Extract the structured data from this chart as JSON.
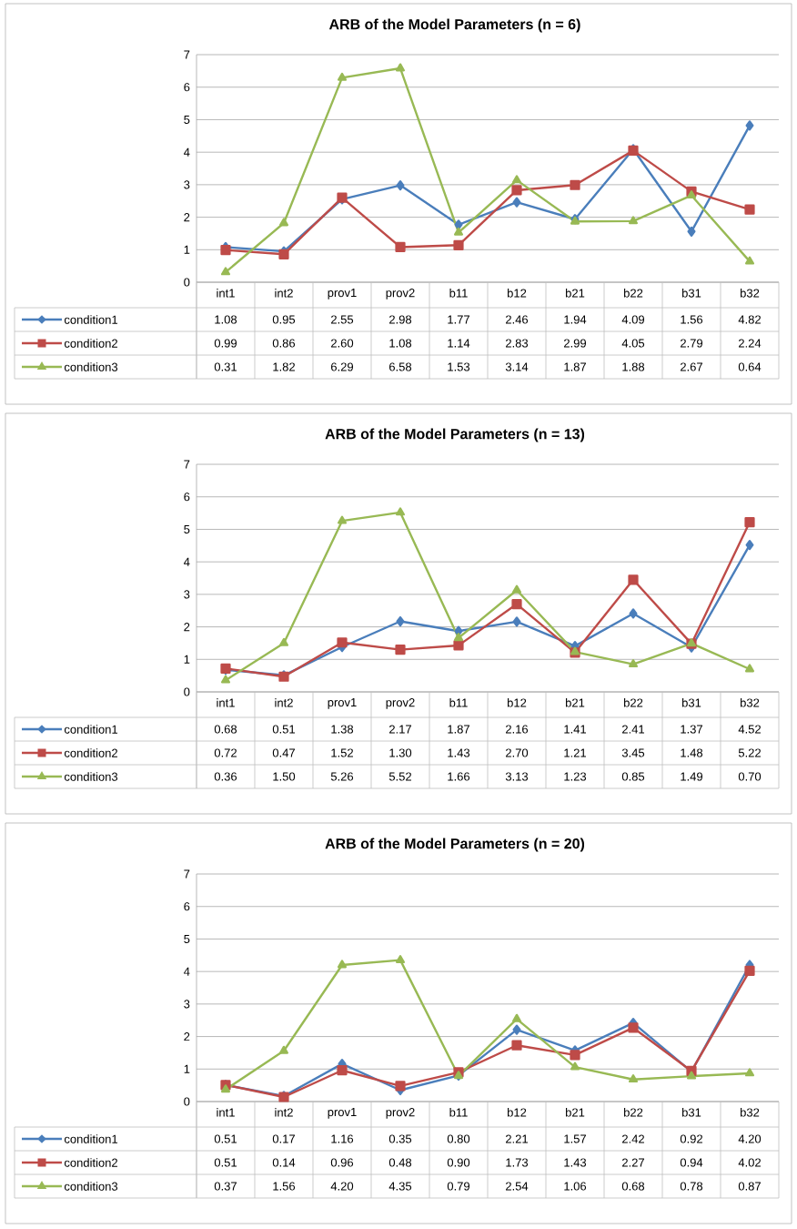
{
  "chart_data": [
    {
      "type": "line",
      "title": "ARB of the Model Parameters (n = 6)",
      "categories": [
        "int1",
        "int2",
        "prov1",
        "prov2",
        "b11",
        "b12",
        "b21",
        "b22",
        "b31",
        "b32"
      ],
      "ylim": [
        0,
        7
      ],
      "yticks": [
        0,
        1,
        2,
        3,
        4,
        5,
        6,
        7
      ],
      "grid": "y",
      "legend": "bottom",
      "series": [
        {
          "name": "condition1",
          "color": "#4a7ebb",
          "marker": "diamond",
          "values": [
            1.08,
            0.95,
            2.55,
            2.98,
            1.77,
            2.46,
            1.94,
            4.09,
            1.56,
            4.82
          ],
          "value_labels": [
            "1.08",
            "0.95",
            "2.55",
            "2.98",
            "1.77",
            "2.46",
            "1.94",
            "4.09",
            "1.56",
            "4.82"
          ]
        },
        {
          "name": "condition2",
          "color": "#be4b48",
          "marker": "square",
          "values": [
            0.99,
            0.86,
            2.6,
            1.08,
            1.14,
            2.83,
            2.99,
            4.05,
            2.79,
            2.24
          ],
          "value_labels": [
            "0.99",
            "0.86",
            "2.60",
            "1.08",
            "1.14",
            "2.83",
            "2.99",
            "4.05",
            "2.79",
            "2.24"
          ]
        },
        {
          "name": "condition3",
          "color": "#98b954",
          "marker": "triangle",
          "values": [
            0.31,
            1.82,
            6.29,
            6.58,
            1.53,
            3.14,
            1.87,
            1.88,
            2.67,
            0.64
          ],
          "value_labels": [
            "0.31",
            "1.82",
            "6.29",
            "6.58",
            "1.53",
            "3.14",
            "1.87",
            "1.88",
            "2.67",
            "0.64"
          ]
        }
      ]
    },
    {
      "type": "line",
      "title": "ARB of the Model Parameters (n = 13)",
      "categories": [
        "int1",
        "int2",
        "prov1",
        "prov2",
        "b11",
        "b12",
        "b21",
        "b22",
        "b31",
        "b32"
      ],
      "ylim": [
        0,
        7
      ],
      "yticks": [
        0,
        1,
        2,
        3,
        4,
        5,
        6,
        7
      ],
      "grid": "y",
      "legend": "bottom",
      "series": [
        {
          "name": "condition1",
          "color": "#4a7ebb",
          "marker": "diamond",
          "values": [
            0.68,
            0.51,
            1.38,
            2.17,
            1.87,
            2.16,
            1.41,
            2.41,
            1.37,
            4.52
          ],
          "value_labels": [
            "0.68",
            "0.51",
            "1.38",
            "2.17",
            "1.87",
            "2.16",
            "1.41",
            "2.41",
            "1.37",
            "4.52"
          ]
        },
        {
          "name": "condition2",
          "color": "#be4b48",
          "marker": "square",
          "values": [
            0.72,
            0.47,
            1.52,
            1.3,
            1.43,
            2.7,
            1.21,
            3.45,
            1.48,
            5.22
          ],
          "value_labels": [
            "0.72",
            "0.47",
            "1.52",
            "1.30",
            "1.43",
            "2.70",
            "1.21",
            "3.45",
            "1.48",
            "5.22"
          ]
        },
        {
          "name": "condition3",
          "color": "#98b954",
          "marker": "triangle",
          "values": [
            0.36,
            1.5,
            5.26,
            5.52,
            1.66,
            3.13,
            1.23,
            0.85,
            1.49,
            0.7
          ],
          "value_labels": [
            "0.36",
            "1.50",
            "5.26",
            "5.52",
            "1.66",
            "3.13",
            "1.23",
            "0.85",
            "1.49",
            "0.70"
          ]
        }
      ]
    },
    {
      "type": "line",
      "title": "ARB of the Model Parameters (n = 20)",
      "categories": [
        "int1",
        "int2",
        "prov1",
        "prov2",
        "b11",
        "b12",
        "b21",
        "b22",
        "b31",
        "b32"
      ],
      "ylim": [
        0,
        7
      ],
      "yticks": [
        0,
        1,
        2,
        3,
        4,
        5,
        6,
        7
      ],
      "grid": "y",
      "legend": "bottom",
      "series": [
        {
          "name": "condition1",
          "color": "#4a7ebb",
          "marker": "diamond",
          "values": [
            0.51,
            0.17,
            1.16,
            0.35,
            0.8,
            2.21,
            1.57,
            2.42,
            0.92,
            4.2
          ],
          "value_labels": [
            "0.51",
            "0.17",
            "1.16",
            "0.35",
            "0.80",
            "2.21",
            "1.57",
            "2.42",
            "0.92",
            "4.20"
          ]
        },
        {
          "name": "condition2",
          "color": "#be4b48",
          "marker": "square",
          "values": [
            0.51,
            0.14,
            0.96,
            0.48,
            0.9,
            1.73,
            1.43,
            2.27,
            0.94,
            4.02
          ],
          "value_labels": [
            "0.51",
            "0.14",
            "0.96",
            "0.48",
            "0.90",
            "1.73",
            "1.43",
            "2.27",
            "0.94",
            "4.02"
          ]
        },
        {
          "name": "condition3",
          "color": "#98b954",
          "marker": "triangle",
          "values": [
            0.37,
            1.56,
            4.2,
            4.35,
            0.79,
            2.54,
            1.06,
            0.68,
            0.78,
            0.87
          ],
          "value_labels": [
            "0.37",
            "1.56",
            "4.20",
            "4.35",
            "0.79",
            "2.54",
            "1.06",
            "0.68",
            "0.78",
            "0.87"
          ]
        }
      ]
    }
  ]
}
